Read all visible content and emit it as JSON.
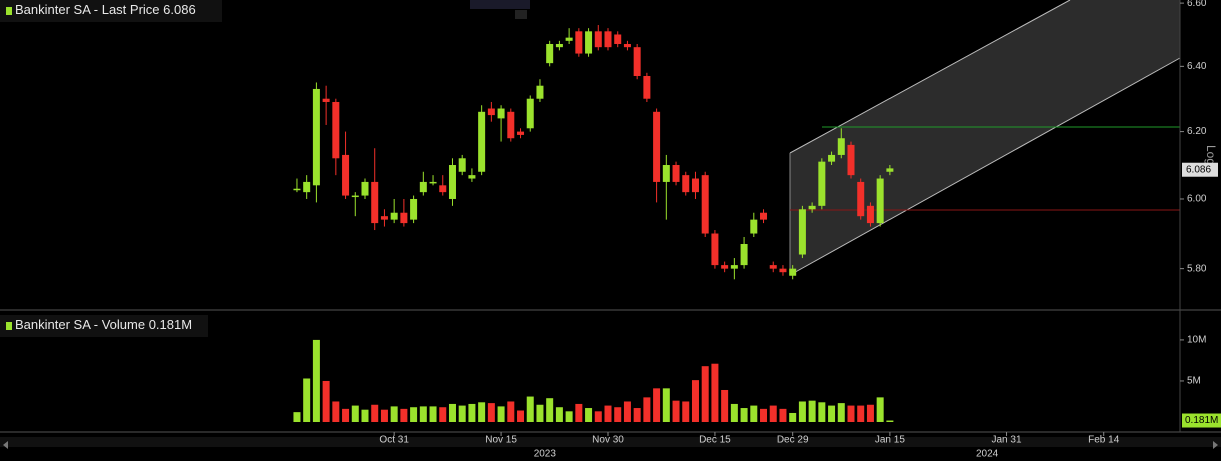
{
  "chart_data": [
    {
      "type": "candlestick",
      "legend": "Bankinter SA - Last Price",
      "current": 6.086,
      "scale_label": "Log",
      "log_scale": true,
      "up_color": "#9be22d",
      "down_color": "#f2302a",
      "ylim": [
        5.69,
        6.61
      ],
      "yticks": [
        {
          "value": 5.8,
          "label": "5.80"
        },
        {
          "value": 6.0,
          "label": "6.00"
        },
        {
          "value": 6.2,
          "label": "6.20"
        },
        {
          "value": 6.4,
          "label": "6.40"
        },
        {
          "value": 6.6,
          "label": "6.60"
        }
      ],
      "open": [
        6.03,
        6.02,
        6.04,
        6.3,
        6.29,
        6.13,
        6.01,
        6.01,
        6.05,
        5.95,
        5.94,
        5.96,
        5.94,
        6.02,
        6.05,
        6.04,
        6.0,
        6.08,
        6.06,
        6.08,
        6.27,
        6.24,
        6.26,
        6.2,
        6.21,
        6.3,
        6.41,
        6.46,
        6.48,
        6.51,
        6.44,
        6.51,
        6.51,
        6.5,
        6.47,
        6.46,
        6.37,
        6.26,
        6.05,
        6.1,
        6.07,
        6.06,
        6.07,
        5.9,
        5.81,
        5.8,
        5.81,
        5.9,
        5.96,
        5.81,
        5.8,
        5.78,
        5.84,
        5.97,
        5.98,
        6.11,
        6.13,
        6.16,
        6.05,
        5.98,
        5.93,
        6.08,
        null,
        null,
        null,
        null,
        null,
        null,
        null,
        null,
        null,
        null,
        null,
        null,
        null,
        null,
        null,
        null,
        null,
        null,
        null,
        null,
        null,
        null,
        null,
        null,
        null,
        null,
        null,
        null,
        null
      ],
      "high": [
        6.06,
        6.07,
        6.35,
        6.34,
        6.3,
        6.2,
        6.02,
        6.06,
        6.15,
        5.97,
        6.0,
        6.0,
        6.01,
        6.08,
        6.07,
        6.07,
        6.12,
        6.13,
        6.09,
        6.28,
        6.29,
        6.28,
        6.27,
        6.21,
        6.31,
        6.36,
        6.48,
        6.48,
        6.52,
        6.52,
        6.52,
        6.53,
        6.52,
        6.51,
        6.48,
        6.47,
        6.38,
        6.27,
        6.13,
        6.11,
        6.08,
        6.08,
        6.08,
        5.91,
        5.82,
        5.83,
        5.89,
        5.96,
        5.97,
        5.82,
        5.81,
        5.81,
        5.98,
        5.99,
        6.12,
        6.14,
        6.21,
        6.17,
        6.06,
        5.99,
        6.07,
        6.1,
        null,
        null,
        null,
        null,
        null,
        null,
        null,
        null,
        null,
        null,
        null,
        null,
        null,
        null,
        null,
        null,
        null,
        null,
        null,
        null,
        null,
        null,
        null,
        null,
        null,
        null,
        null,
        null,
        null
      ],
      "low": [
        6.02,
        6.0,
        5.99,
        6.22,
        6.07,
        6.0,
        5.95,
        6.0,
        5.91,
        5.92,
        5.93,
        5.92,
        5.93,
        6.01,
        6.04,
        6.01,
        5.98,
        6.07,
        6.05,
        6.07,
        6.23,
        6.17,
        6.17,
        6.18,
        6.2,
        6.29,
        6.4,
        6.45,
        6.47,
        6.43,
        6.43,
        6.45,
        6.45,
        6.46,
        6.45,
        6.36,
        6.29,
        5.99,
        5.94,
        6.04,
        6.01,
        6.0,
        5.89,
        5.8,
        5.79,
        5.77,
        5.8,
        5.89,
        5.93,
        5.79,
        5.78,
        5.77,
        5.83,
        5.96,
        5.97,
        6.1,
        6.12,
        6.06,
        5.94,
        5.92,
        5.92,
        6.07,
        null,
        null,
        null,
        null,
        null,
        null,
        null,
        null,
        null,
        null,
        null,
        null,
        null,
        null,
        null,
        null,
        null,
        null,
        null,
        null,
        null,
        null,
        null,
        null,
        null,
        null,
        null,
        null,
        null
      ],
      "close": [
        6.03,
        6.05,
        6.33,
        6.29,
        6.12,
        6.01,
        6.01,
        6.05,
        5.93,
        5.94,
        5.96,
        5.93,
        6.0,
        6.05,
        6.05,
        6.02,
        6.1,
        6.12,
        6.07,
        6.26,
        6.25,
        6.27,
        6.18,
        6.19,
        6.3,
        6.34,
        6.47,
        6.47,
        6.49,
        6.44,
        6.51,
        6.46,
        6.46,
        6.47,
        6.46,
        6.37,
        6.3,
        6.05,
        6.1,
        6.05,
        6.02,
        6.02,
        5.9,
        5.81,
        5.8,
        5.81,
        5.87,
        5.94,
        5.94,
        5.8,
        5.79,
        5.8,
        5.97,
        5.98,
        6.11,
        6.13,
        6.18,
        6.07,
        5.95,
        5.93,
        6.06,
        6.09,
        null,
        null,
        null,
        null,
        null,
        null,
        null,
        null,
        null,
        null,
        null,
        null,
        null,
        null,
        null,
        null,
        null,
        null,
        null,
        null,
        null,
        null,
        null,
        null,
        null,
        null,
        null,
        null,
        null
      ]
    },
    {
      "type": "bar",
      "legend": "Bankinter SA - Volume",
      "current": {
        "value": 181000,
        "label": "0.181M"
      },
      "ylim": [
        0,
        13400000
      ],
      "yticks": [
        {
          "value": 5000000,
          "label": "5M"
        },
        {
          "value": 10000000,
          "label": "10M"
        }
      ],
      "categories": [
        null,
        null,
        null,
        null,
        null,
        null,
        null,
        null,
        null,
        null,
        "Oct 31",
        null,
        null,
        null,
        null,
        null,
        null,
        null,
        null,
        null,
        null,
        "Nov 15",
        null,
        null,
        null,
        null,
        null,
        null,
        null,
        null,
        null,
        null,
        "Nov 30",
        null,
        null,
        null,
        null,
        null,
        null,
        null,
        null,
        null,
        null,
        "Dec 15",
        null,
        null,
        null,
        null,
        null,
        null,
        null,
        "Dec 29",
        null,
        null,
        null,
        null,
        null,
        null,
        null,
        null,
        null,
        "Jan 15",
        null,
        null,
        null,
        null,
        null,
        null,
        null,
        null,
        null,
        null,
        null,
        "Jan 31",
        null,
        null,
        null,
        null,
        null,
        null,
        null,
        null,
        null,
        "Feb 14",
        null,
        null,
        null,
        null,
        null,
        null,
        null
      ],
      "year_labels": [
        "2023",
        "2024"
      ],
      "values": [
        1200000,
        5300000,
        10000000,
        5000000,
        2500000,
        1600000,
        2000000,
        1500000,
        2100000,
        1500000,
        1900000,
        1600000,
        1800000,
        1900000,
        1900000,
        1800000,
        2200000,
        2000000,
        2200000,
        2400000,
        2300000,
        1900000,
        2500000,
        1400000,
        3100000,
        2100000,
        2900000,
        1800000,
        1300000,
        2200000,
        1700000,
        1300000,
        2000000,
        1800000,
        2500000,
        1700000,
        3000000,
        4100000,
        4100000,
        2600000,
        2500000,
        5100000,
        6800000,
        7100000,
        3900000,
        2200000,
        1700000,
        2000000,
        1600000,
        2000000,
        1600000,
        1100000,
        2500000,
        2600000,
        2400000,
        2000000,
        2300000,
        2000000,
        2000000,
        2100000,
        3000000,
        181000,
        null,
        null,
        null,
        null,
        null,
        null,
        null,
        null,
        null,
        null,
        null,
        null,
        null,
        null,
        null,
        null,
        null,
        null,
        null,
        null,
        null,
        null,
        null,
        null,
        null,
        null,
        null,
        null,
        null
      ]
    }
  ]
}
